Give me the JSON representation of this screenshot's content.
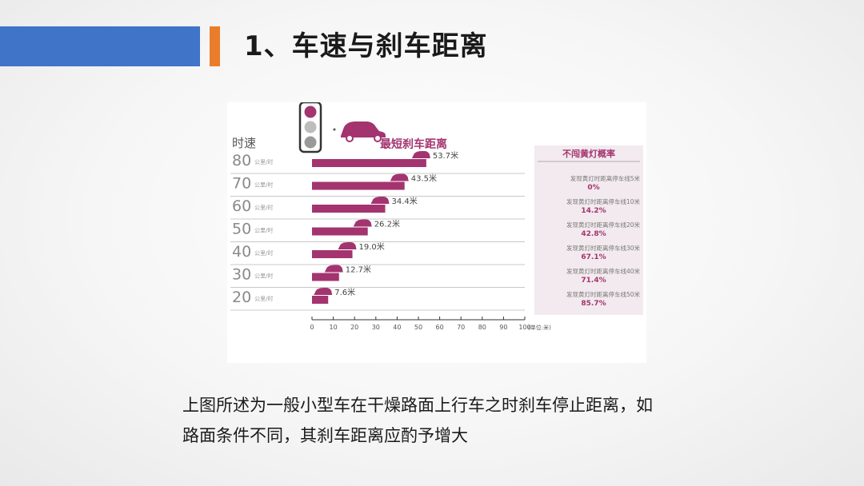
{
  "slide": {
    "title": "1、车速与刹车距离",
    "caption_line1": "上图所述为一般小型车在干燥路面上行车之时刹车停止距离，如",
    "caption_line2": "路面条件不同，其刹车距离应酌予增大"
  },
  "colors": {
    "accent_blue": "#3f74c9",
    "accent_orange": "#ea7d2b",
    "bar_magenta": "#a3346f",
    "light_red": "#a3346f",
    "light_off": "#9a9a9a",
    "right_panel_bg": "#f2eaee"
  },
  "icons": {
    "traffic_light": "traffic-light-icon",
    "car": "car-icon"
  },
  "chart_data": {
    "type": "bar",
    "orientation": "horizontal",
    "title": "最短刹车距离",
    "row_axis_label": "时速",
    "categories": [
      "80",
      "70",
      "60",
      "50",
      "40",
      "30",
      "20"
    ],
    "category_units": "公里/时",
    "values": [
      53.7,
      43.5,
      34.4,
      26.2,
      19.0,
      12.7,
      7.6
    ],
    "value_labels": [
      "53.7米",
      "43.5米",
      "34.4米",
      "26.2米",
      "19.0米",
      "12.7米",
      "7.6米"
    ],
    "xticks": [
      "0",
      "10",
      "20",
      "30",
      "40",
      "50",
      "60",
      "70",
      "80",
      "90",
      "100"
    ],
    "xlim": [
      0,
      100
    ],
    "xunit": "(单位:米)",
    "side_table": {
      "title": "不闯黄灯概率",
      "rows": [
        {
          "label": "发现黄灯时距离停车线5米",
          "value": "0%"
        },
        {
          "label": "发现黄灯时距离停车线10米",
          "value": "14.2%"
        },
        {
          "label": "发现黄灯时距离停车线20米",
          "value": "42.8%"
        },
        {
          "label": "发现黄灯时距离停车线30米",
          "value": "67.1%"
        },
        {
          "label": "发现黄灯时距离停车线40米",
          "value": "71.4%"
        },
        {
          "label": "发现黄灯时距离停车线50米",
          "value": "85.7%"
        }
      ]
    }
  }
}
